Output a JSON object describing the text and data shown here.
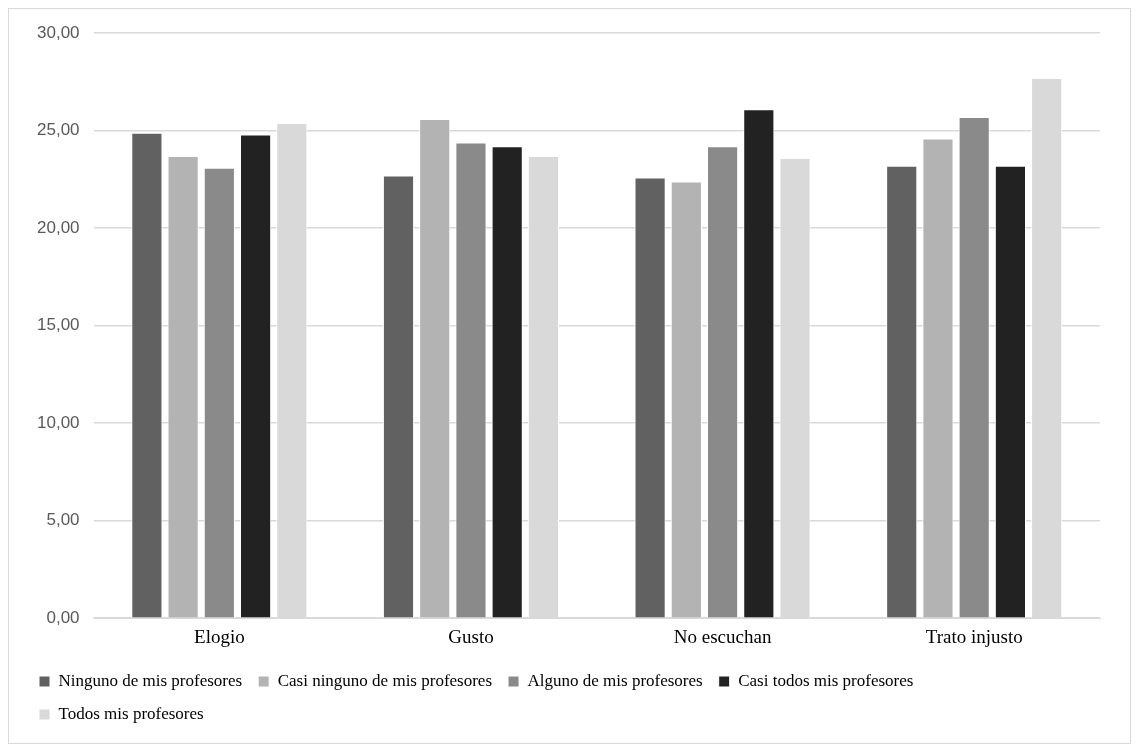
{
  "chart_data": {
    "type": "bar",
    "categories": [
      "Elogio",
      "Gusto",
      "No escuchan",
      "Trato injusto"
    ],
    "series": [
      {
        "name": "Ninguno de mis profesores",
        "color": "#616161",
        "values": [
          24.9,
          22.7,
          22.6,
          23.2
        ]
      },
      {
        "name": "Casi ninguno de mis profesores",
        "color": "#b3b3b3",
        "values": [
          23.7,
          25.6,
          22.4,
          24.6
        ]
      },
      {
        "name": "Alguno de mis profesores",
        "color": "#8a8a8a",
        "values": [
          23.1,
          24.4,
          24.2,
          25.7
        ]
      },
      {
        "name": "Casi todos mis profesores",
        "color": "#222222",
        "values": [
          24.8,
          24.2,
          26.1,
          23.2
        ]
      },
      {
        "name": "Todos mis profesores",
        "color": "#d9d9d9",
        "values": [
          25.4,
          23.7,
          23.6,
          27.7
        ]
      }
    ],
    "ylim": [
      0,
      30
    ],
    "yticks": [
      {
        "value": 0,
        "label": "0,00"
      },
      {
        "value": 5,
        "label": "5,00"
      },
      {
        "value": 10,
        "label": "10,00"
      },
      {
        "value": 15,
        "label": "15,00"
      },
      {
        "value": 20,
        "label": "20,00"
      },
      {
        "value": 25,
        "label": "25,00"
      },
      {
        "value": 30,
        "label": "30,00"
      }
    ],
    "grid": "y",
    "legend": "bottom"
  }
}
